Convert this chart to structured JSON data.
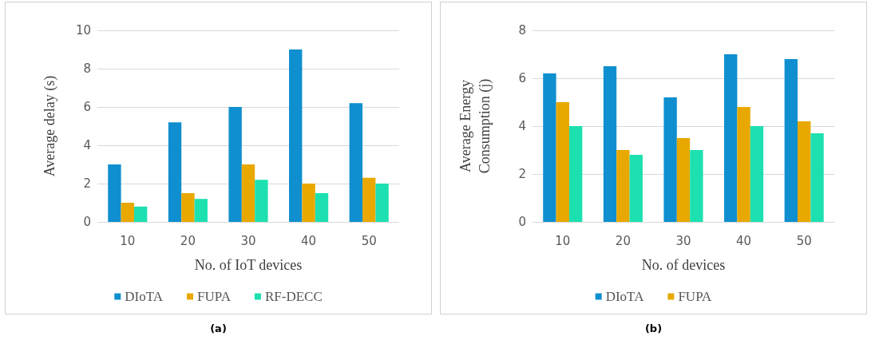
{
  "chart_data": [
    {
      "type": "bar",
      "categories": [
        "10",
        "20",
        "30",
        "40",
        "50"
      ],
      "xlabel": "No. of IoT devices",
      "ylabel": "Average delay (s)",
      "ylim": [
        0,
        10
      ],
      "yticks": [
        0,
        2,
        4,
        6,
        8,
        10
      ],
      "grid": "y",
      "legend": "bottom",
      "annotations": [
        "(a)"
      ],
      "series": [
        {
          "name": "DIoTA",
          "color": "#0f8fcf",
          "values": [
            3,
            5.2,
            6,
            9,
            6.2
          ]
        },
        {
          "name": "FUPA",
          "color": "#e8a800",
          "values": [
            1,
            1.5,
            3,
            2,
            2.3
          ]
        },
        {
          "name": "RF-DECC",
          "color": "#1de0b0",
          "values": [
            0.8,
            1.2,
            2.2,
            1.5,
            2.0
          ]
        }
      ]
    },
    {
      "type": "bar",
      "categories": [
        "10",
        "20",
        "30",
        "40",
        "50"
      ],
      "xlabel": "No. of devices",
      "ylabel": "Average Energy\nConsumption (j)",
      "ylim": [
        0,
        8
      ],
      "yticks": [
        0,
        2,
        4,
        6,
        8
      ],
      "grid": "y",
      "legend": "bottom",
      "annotations": [
        "(b)"
      ],
      "series": [
        {
          "name": "DIoTA",
          "color": "#0f8fcf",
          "values": [
            6.2,
            6.5,
            5.2,
            7.0,
            6.8
          ]
        },
        {
          "name": "FUPA",
          "color": "#e8a800",
          "values": [
            5.0,
            3.0,
            3.5,
            4.8,
            4.2
          ]
        },
        {
          "color": "#1de0b0",
          "values": [
            4.0,
            2.8,
            3.0,
            4.0,
            3.7
          ]
        }
      ]
    }
  ]
}
